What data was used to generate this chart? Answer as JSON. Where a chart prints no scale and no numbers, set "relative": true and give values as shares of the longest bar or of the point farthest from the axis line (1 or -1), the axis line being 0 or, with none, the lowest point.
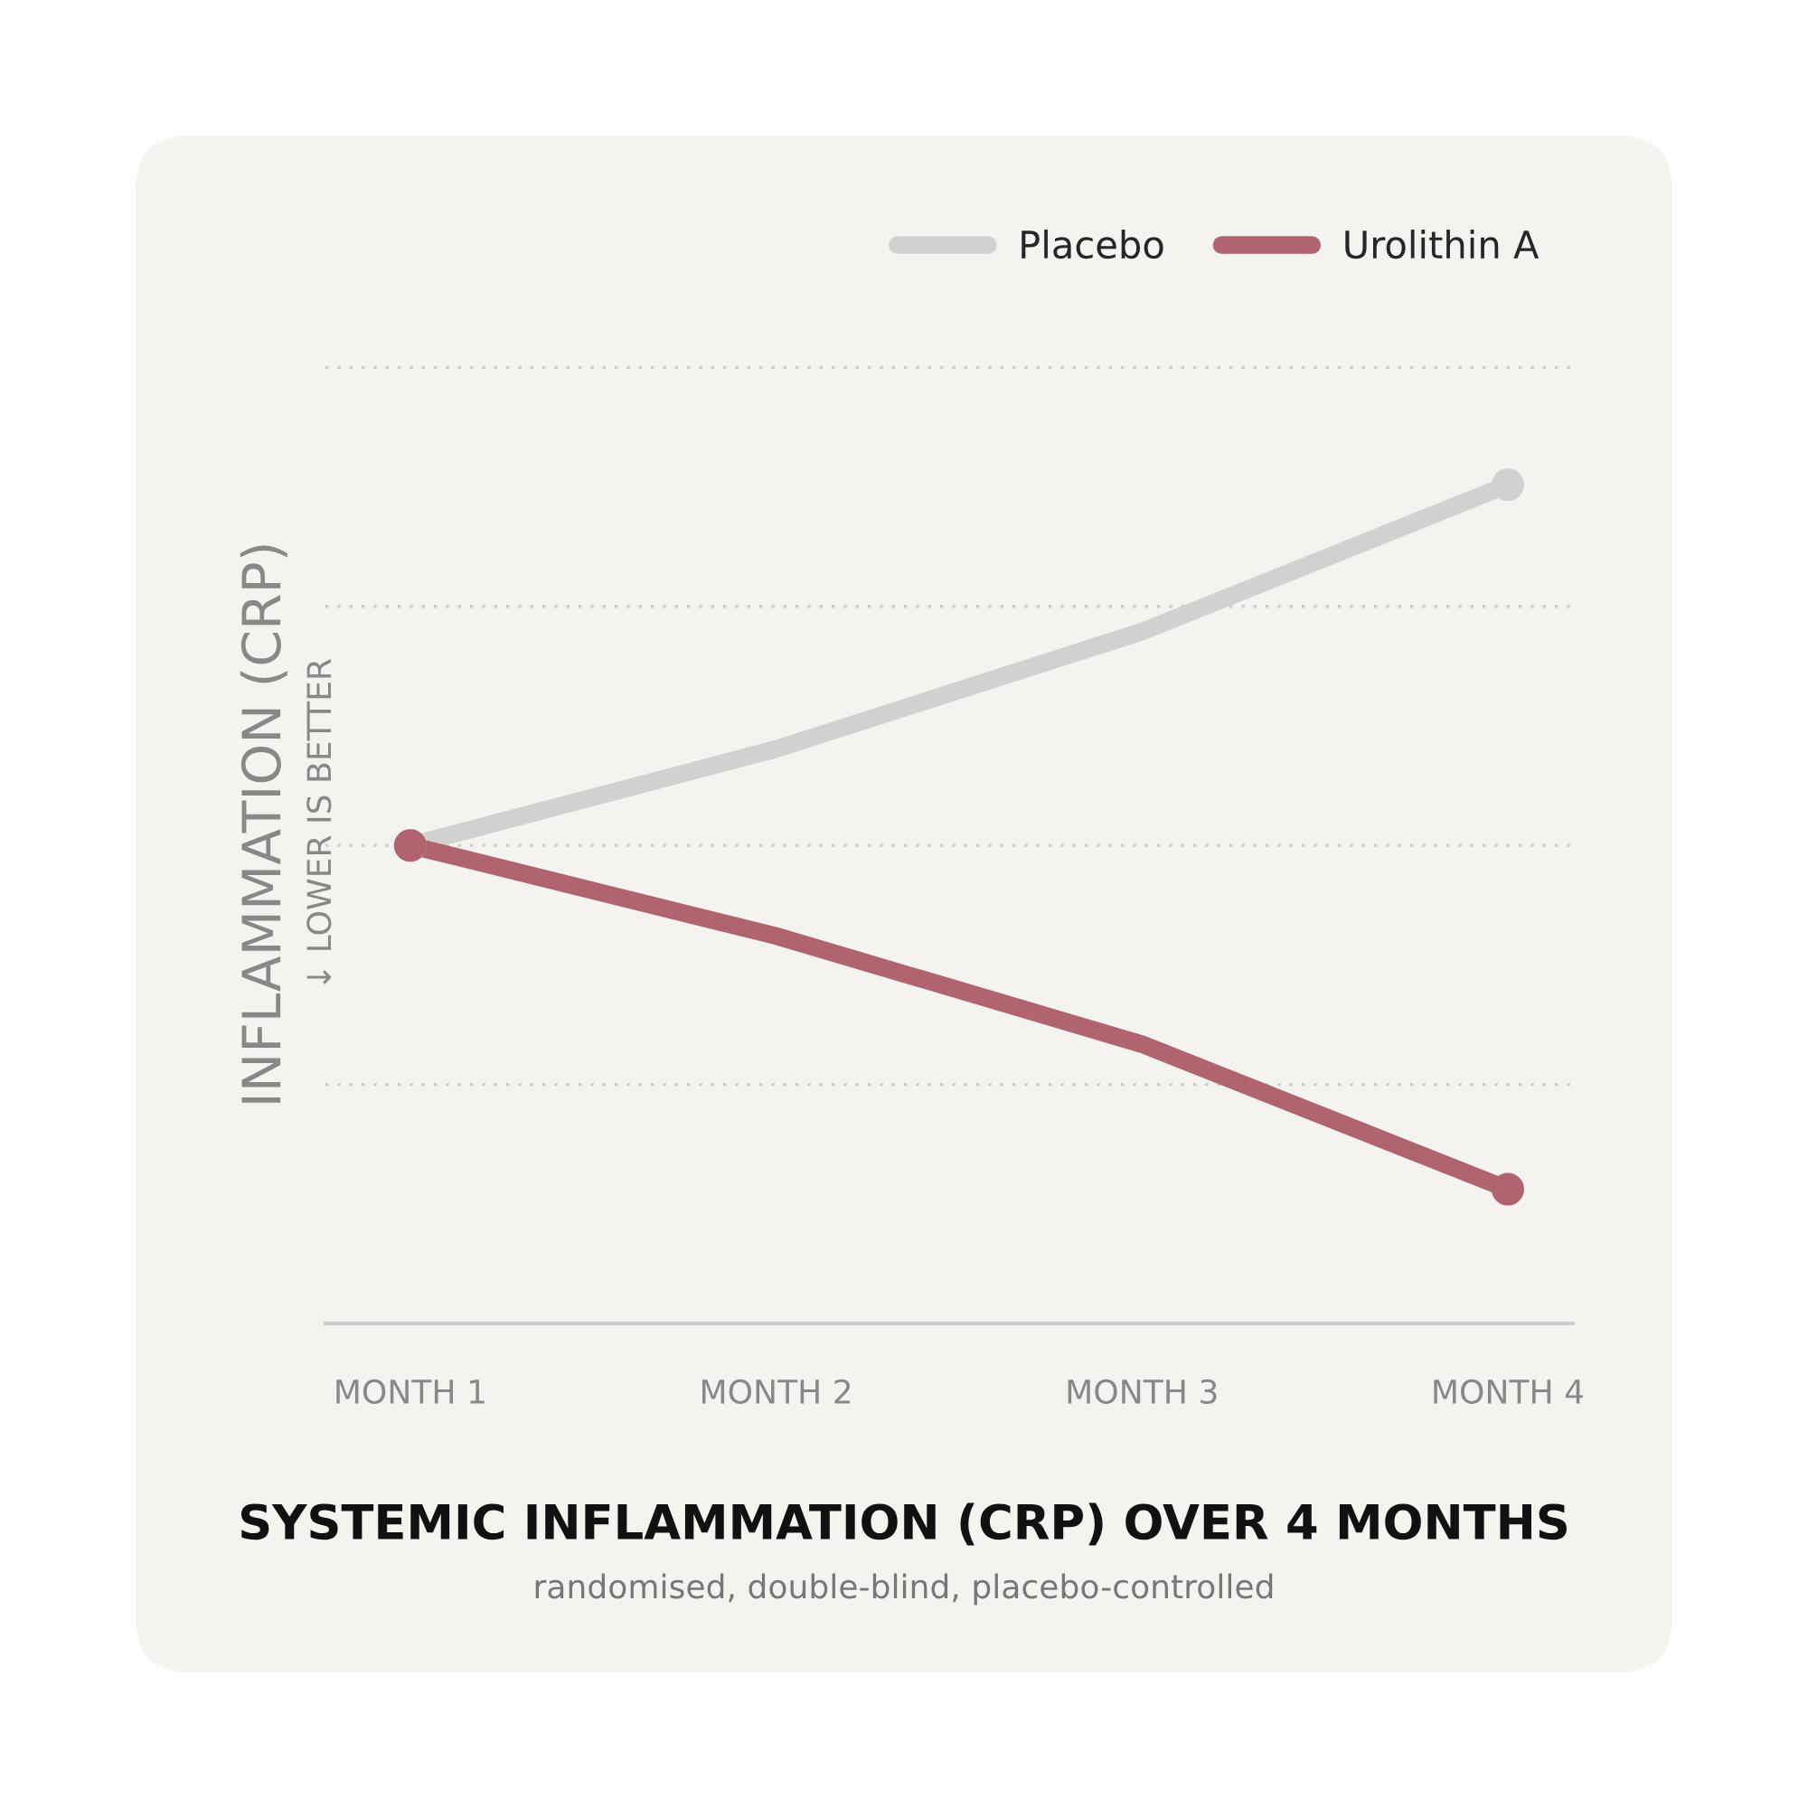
{
  "chart_data": {
    "type": "line",
    "relative": true,
    "title": "SYSTEMIC INFLAMMATION (CRP) OVER 4 MONTHS",
    "ylabel": "INFLAMMATION (CRP)",
    "annotations": [
      "↓ LOWER IS BETTER",
      "randomised, double-blind, placebo-controlled"
    ],
    "categories": [
      "MONTH 1",
      "MONTH 2",
      "MONTH 3",
      "MONTH 4"
    ],
    "series": [
      {
        "name": "Placebo",
        "color": "#d3d1cf",
        "values": [
          0.57,
          0.685,
          0.825,
          1
        ]
      },
      {
        "name": "Urolithin A",
        "color": "#b06470",
        "values": [
          0.57,
          0.462,
          0.333,
          0.16
        ]
      }
    ],
    "grid": "y",
    "legend": "top right",
    "marker": "circle",
    "line_style": "solid"
  }
}
